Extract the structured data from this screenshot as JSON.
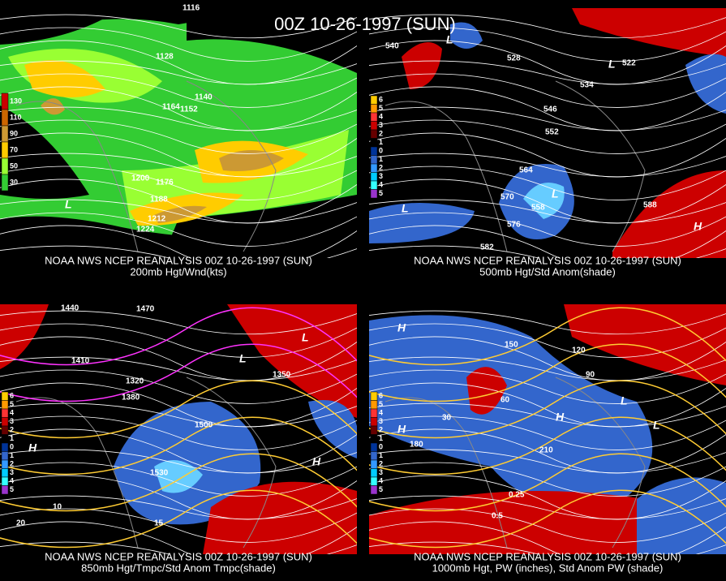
{
  "title": "00Z 10-26-1997 (SUN)",
  "panels": [
    {
      "caption": "NOAA NWS NCEP REANALYSIS 00Z 10-26-1997 (SUN)",
      "subtitle": "200mb Hgt/Wnd(kts)",
      "colorbar": [
        "130",
        "110",
        "90",
        "70",
        "50",
        "30"
      ],
      "contour_labels": [
        "1116",
        "1128",
        "1140",
        "1152",
        "1164",
        "1176",
        "1188",
        "1200",
        "1212",
        "1224"
      ],
      "centers": [
        "L"
      ]
    },
    {
      "caption": "NOAA NWS NCEP REANALYSIS 00Z 10-26-1997 (SUN)",
      "subtitle": "500mb Hgt/Std Anom(shade)",
      "colorbar": [
        "6",
        "5",
        "4",
        "3",
        "2",
        "1",
        "0",
        "1",
        "2",
        "3",
        "4",
        "5"
      ],
      "contour_labels": [
        "540",
        "528",
        "534",
        "546",
        "552",
        "564",
        "570",
        "576",
        "582",
        "588",
        "522",
        "558"
      ],
      "centers": [
        "L",
        "L",
        "L",
        "L",
        "H"
      ]
    },
    {
      "caption": "NOAA NWS NCEP REANALYSIS 00Z 10-26-1997 (SUN)",
      "subtitle": "850mb Hgt/Tmpc/Std Anom Tmpc(shade)",
      "colorbar": [
        "6",
        "5",
        "4",
        "3",
        "2",
        "1",
        "0",
        "1",
        "2",
        "3",
        "4",
        "5"
      ],
      "contour_labels": [
        "1440",
        "1470",
        "1410",
        "1380",
        "1500",
        "1530",
        "1350",
        "1320",
        "10",
        "15",
        "20"
      ],
      "centers": [
        "L",
        "L",
        "H",
        "H"
      ]
    },
    {
      "caption": "NOAA NWS NCEP REANALYSIS 00Z 10-26-1997 (SUN)",
      "subtitle": "1000mb Hgt, PW (inches), Std Anom PW (shade)",
      "colorbar": [
        "6",
        "5",
        "4",
        "3",
        "2",
        "1",
        "0",
        "1",
        "2",
        "3",
        "4",
        "5"
      ],
      "contour_labels": [
        "150",
        "120",
        "90",
        "60",
        "180",
        "0.25",
        "0.5",
        "210",
        "30"
      ],
      "centers": [
        "H",
        "L",
        "L",
        "H",
        "H"
      ]
    }
  ]
}
